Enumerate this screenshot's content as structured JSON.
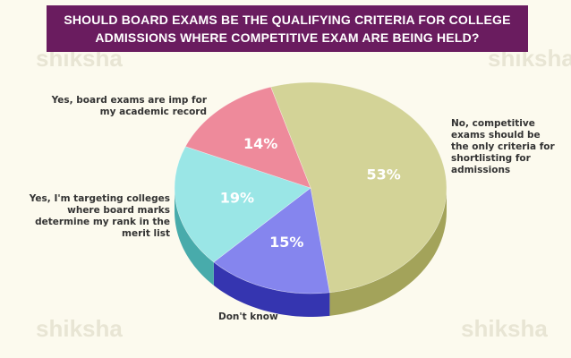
{
  "chart_data": {
    "type": "pie",
    "title": "SHOULD BOARD EXAMS BE THE QUALIFYING CRITERIA FOR COLLEGE ADMISSIONS WHERE COMPETITIVE EXAM ARE BEING HELD?",
    "categories": [
      "No, competitive exams should be the only criteria for shortlisting for admissions",
      "Don't know",
      "Yes, I'm targeting colleges where board marks determine my rank in the merit list",
      "Yes, board exams are imp for my academic record"
    ],
    "values": [
      53,
      15,
      19,
      14
    ],
    "value_labels": [
      "53%",
      "15%",
      "19%",
      "14%"
    ],
    "colors": [
      "#d3d397",
      "#8585ee",
      "#9ae6e6",
      "#ee8a9b"
    ],
    "side_colors": [
      "#a3a35a",
      "#3535b0",
      "#48abab",
      "#c95568"
    ],
    "watermark": "shiksha"
  }
}
